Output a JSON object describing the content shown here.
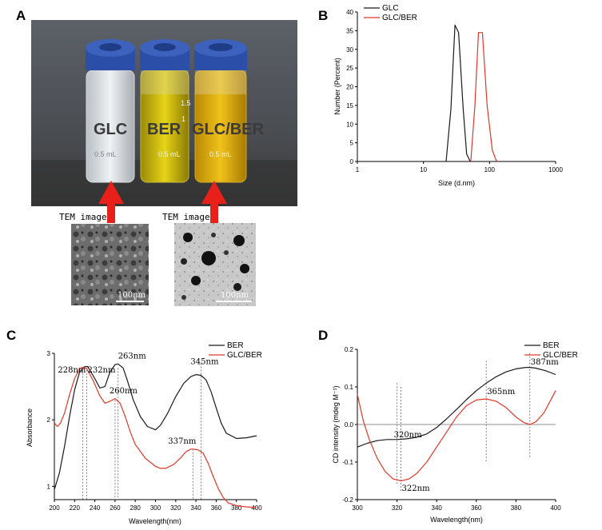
{
  "panels": {
    "a": "A",
    "b": "B",
    "c": "C",
    "d": "D"
  },
  "photo": {
    "vial_labels": [
      "GLC",
      "BER",
      "GLC/BER"
    ],
    "vial_markings": [
      "1.5",
      "1",
      "0.5 mL"
    ],
    "tem_label_left": "TEM image",
    "tem_label_right": "TEM image",
    "scale_left": "100nm",
    "scale_right": "100nm",
    "cap_color": "#2b4fa8",
    "arrow_color": "#e8201a"
  },
  "chart_data": [
    {
      "id": "B",
      "type": "line",
      "xlabel": "Size (d.nm)",
      "ylabel": "Number (Percent)",
      "xscale": "log",
      "xlim": [
        1,
        1000
      ],
      "ylim": [
        0,
        40
      ],
      "xticks": [
        1,
        10,
        100,
        1000
      ],
      "yticks": [
        0,
        5,
        10,
        15,
        20,
        25,
        30,
        35,
        40
      ],
      "legend": "top-right",
      "series": [
        {
          "name": "GLC",
          "color": "#1a1a1a",
          "x": [
            22,
            26,
            30,
            34,
            40,
            45,
            51
          ],
          "y": [
            0,
            14,
            36.5,
            34.5,
            14,
            2,
            0
          ]
        },
        {
          "name": "GLC/BER",
          "color": "#e0382a",
          "x": [
            52,
            60,
            68,
            78,
            92,
            110,
            128
          ],
          "y": [
            0,
            15,
            34.5,
            34.5,
            15,
            3,
            0
          ]
        }
      ]
    },
    {
      "id": "C",
      "type": "line",
      "xlabel": "Wavelength(nm)",
      "ylabel": "Absorbance",
      "xlim": [
        200,
        400
      ],
      "ylim": [
        0.8,
        3.0
      ],
      "xticks": [
        200,
        220,
        240,
        260,
        280,
        300,
        320,
        340,
        360,
        380,
        400
      ],
      "yticks": [
        1,
        2,
        3
      ],
      "legend": "top-right",
      "annotations": [
        {
          "text": "228nm",
          "x": 228
        },
        {
          "text": "232nm",
          "x": 232
        },
        {
          "text": "263nm",
          "x": 263
        },
        {
          "text": "260nm",
          "x": 260
        },
        {
          "text": "345nm",
          "x": 345
        },
        {
          "text": "337nm",
          "x": 337
        }
      ],
      "series": [
        {
          "name": "BER",
          "color": "#1a1a1a",
          "x": [
            200,
            205,
            210,
            215,
            220,
            225,
            230,
            233,
            240,
            245,
            250,
            255,
            260,
            263,
            268,
            272,
            278,
            285,
            292,
            300,
            305,
            312,
            320,
            328,
            335,
            340,
            345,
            350,
            355,
            360,
            365,
            370,
            380,
            390,
            400
          ],
          "y": [
            0.95,
            1.2,
            1.6,
            2.05,
            2.45,
            2.72,
            2.8,
            2.8,
            2.62,
            2.48,
            2.5,
            2.72,
            2.83,
            2.84,
            2.78,
            2.6,
            2.3,
            2.05,
            1.9,
            1.85,
            1.92,
            2.1,
            2.35,
            2.55,
            2.65,
            2.68,
            2.67,
            2.6,
            2.42,
            2.18,
            1.95,
            1.8,
            1.72,
            1.73,
            1.76
          ]
        },
        {
          "name": "GLC/BER",
          "color": "#e0382a",
          "x": [
            200,
            203,
            206,
            210,
            215,
            220,
            225,
            228,
            232,
            238,
            245,
            250,
            255,
            260,
            265,
            270,
            275,
            280,
            290,
            300,
            305,
            310,
            318,
            325,
            330,
            335,
            337,
            342,
            347,
            352,
            357,
            362,
            367,
            372,
            380,
            390,
            400
          ],
          "y": [
            1.95,
            1.9,
            1.95,
            2.1,
            2.38,
            2.62,
            2.77,
            2.79,
            2.77,
            2.6,
            2.36,
            2.25,
            2.28,
            2.32,
            2.25,
            2.05,
            1.82,
            1.63,
            1.42,
            1.3,
            1.27,
            1.27,
            1.33,
            1.43,
            1.52,
            1.56,
            1.56,
            1.55,
            1.5,
            1.35,
            1.15,
            0.97,
            0.83,
            0.75,
            0.71,
            0.69,
            0.68
          ]
        }
      ]
    },
    {
      "id": "D",
      "type": "line",
      "xlabel": "Wavelength(nm)",
      "ylabel": "CD intensity (mdeg M⁻¹)",
      "xlim": [
        300,
        400
      ],
      "ylim": [
        -0.2,
        0.2
      ],
      "xticks": [
        300,
        320,
        340,
        360,
        380,
        400
      ],
      "yticks": [
        -0.2,
        -0.1,
        0.0,
        0.1,
        0.2
      ],
      "legend": "top-right",
      "annotations": [
        {
          "text": "320nm",
          "x": 320
        },
        {
          "text": "322nm",
          "x": 322
        },
        {
          "text": "365nm",
          "x": 365
        },
        {
          "text": "387nm",
          "x": 387
        }
      ],
      "series": [
        {
          "name": "BER",
          "color": "#1a1a1a",
          "x": [
            300,
            305,
            310,
            315,
            320,
            325,
            330,
            335,
            340,
            345,
            350,
            355,
            360,
            365,
            370,
            375,
            380,
            385,
            387,
            390,
            395,
            400
          ],
          "y": [
            -0.06,
            -0.05,
            -0.043,
            -0.04,
            -0.04,
            -0.038,
            -0.034,
            -0.025,
            -0.008,
            0.015,
            0.04,
            0.066,
            0.09,
            0.11,
            0.127,
            0.14,
            0.148,
            0.152,
            0.152,
            0.15,
            0.143,
            0.133
          ]
        },
        {
          "name": "GLC/BER",
          "color": "#e0382a",
          "x": [
            300,
            303,
            306,
            310,
            314,
            318,
            322,
            326,
            330,
            335,
            340,
            345,
            350,
            355,
            360,
            365,
            370,
            375,
            380,
            384,
            387,
            390,
            394,
            397,
            400
          ],
          "y": [
            0.08,
            0.01,
            -0.04,
            -0.09,
            -0.125,
            -0.145,
            -0.15,
            -0.145,
            -0.13,
            -0.1,
            -0.06,
            -0.02,
            0.02,
            0.05,
            0.065,
            0.068,
            0.062,
            0.045,
            0.02,
            0.005,
            0.0,
            0.007,
            0.03,
            0.06,
            0.09
          ]
        }
      ]
    }
  ]
}
